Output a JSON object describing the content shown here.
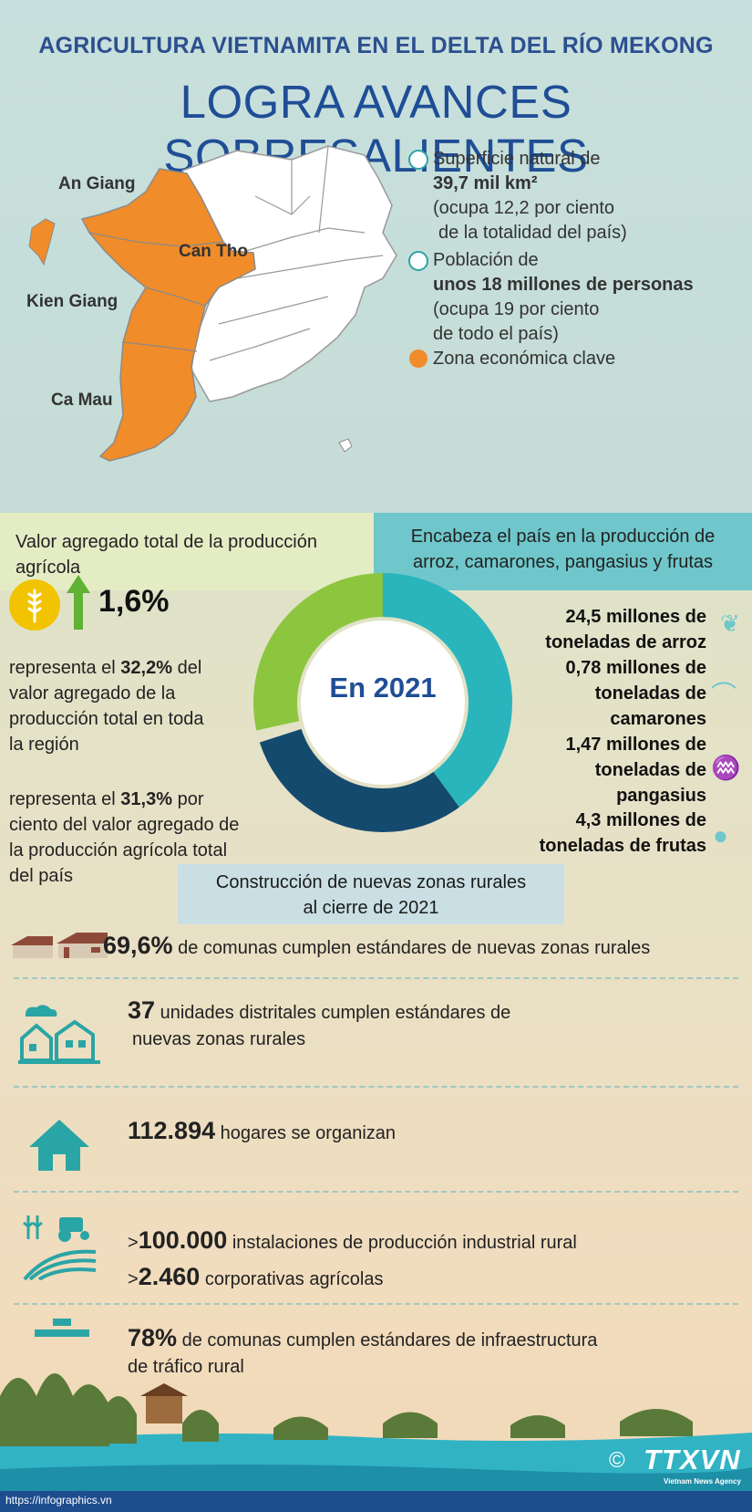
{
  "header": {
    "subtitle": "AGRICULTURA VIETNAMITA EN EL DELTA DEL RÍO MEKONG",
    "title": "LOGRA AVANCES SOBRESALIENTES"
  },
  "map": {
    "labels": [
      "An Giang",
      "Can Tho",
      "Kien Giang",
      "Ca Mau"
    ],
    "colors": {
      "key_zone": "#f08c2a",
      "other": "#ffffff",
      "border": "#9a9a9a"
    }
  },
  "legend": {
    "area_line1": "Superficie natural de",
    "area_value": "39,7 mil km²",
    "area_line3": "(ocupa 12,2 por ciento",
    "area_line4": "de la totalidad del país)",
    "pop_line1": "Población de",
    "pop_value": "unos 18 millones de personas",
    "pop_line3": "(ocupa 19 por ciento",
    "pop_line4": "de todo el país)",
    "key_zone": "Zona económica clave"
  },
  "value_added": {
    "heading_line1": "Valor agregado total de la producción",
    "heading_line2": "agrícola",
    "growth": "1,6%",
    "p1_pre": "representa el ",
    "p1_value": "32,2%",
    "p1_post": " del",
    "p1_line2": "valor agregado de la",
    "p1_line3": "producción total en toda",
    "p1_line4": "la región",
    "p2_pre": "representa el ",
    "p2_value": "31,3%",
    "p2_post": " por",
    "p2_line2": "ciento del valor agregado de",
    "p2_line3": "la producción agrícola total",
    "p2_line4": "del país"
  },
  "center": {
    "label": "En 2021",
    "colors": [
      "#8cc63f",
      "#2ab5bd",
      "#144a6e"
    ]
  },
  "leader": {
    "heading_line1": "Encabeza el país en la producción de",
    "heading_line2": "arroz, camarones, pangasius y frutas",
    "rice_1": "24,5 millones de",
    "rice_2": "toneladas de arroz",
    "shrimp_1": "0,78 millones de",
    "shrimp_2": "toneladas de",
    "shrimp_3": "camarones",
    "fish_1": "1,47 millones de",
    "fish_2": "toneladas de",
    "fish_3": "pangasius",
    "fruit_1": "4,3 millones de",
    "fruit_2": "toneladas de frutas"
  },
  "rural": {
    "heading_line1": "Construcción de nuevas zonas rurales",
    "heading_line2": "al cierre de 2021",
    "r1_value": "69,6%",
    "r1_text": " de comunas cumplen estándares de nuevas zonas rurales",
    "r2_value": "37",
    "r2_text": " unidades distritales cumplen estándares de",
    "r2_line2": "nuevas zonas rurales",
    "r3_value": "112.894",
    "r3_text": " hogares se organizan",
    "r4_prefix": ">",
    "r4_value": "100.000",
    "r4_text": " instalaciones de producción industrial rural",
    "r5_prefix": ">",
    "r5_value": "2.460",
    "r5_text": " corporativas agrícolas",
    "r6_value": "78%",
    "r6_text": " de comunas cumplen estándares de infraestructura",
    "r6_line2": "de tráfico rural"
  },
  "footer": {
    "copyright": "©",
    "logo": "TTXVN",
    "logo_sub": "Vietnam News Agency",
    "url": "https://infographics.vn"
  }
}
